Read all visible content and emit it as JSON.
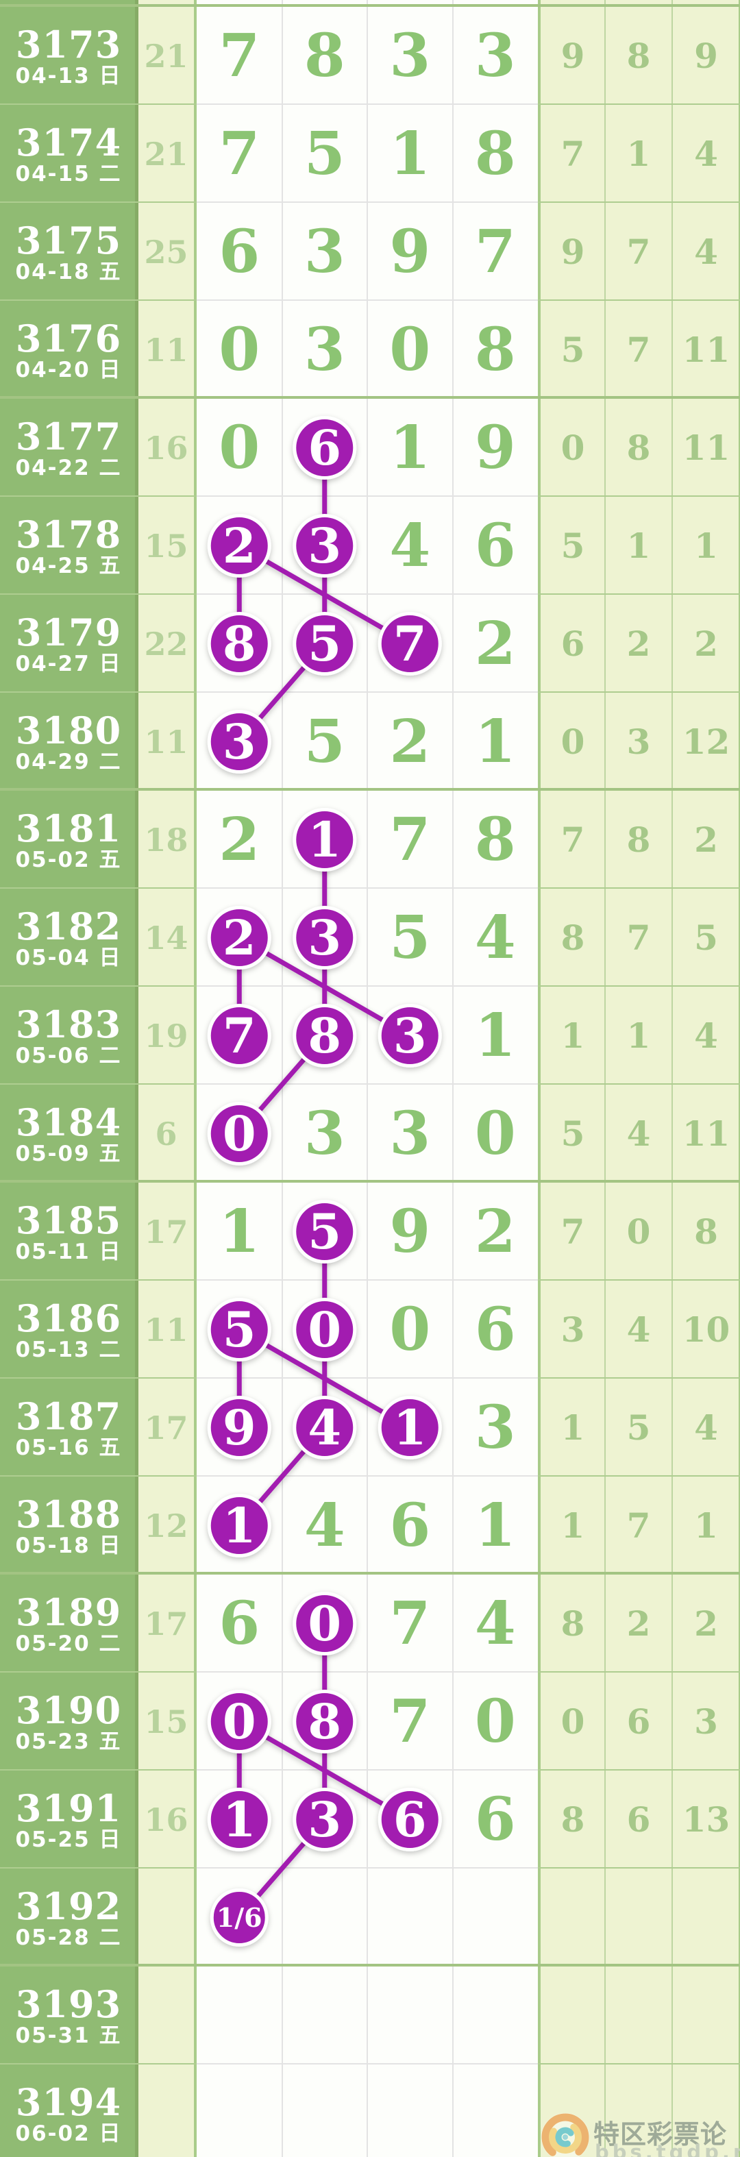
{
  "chart_data": {
    "type": "table",
    "rows": [
      {
        "period": "3173",
        "date": "04-13 日",
        "count": "21",
        "digits": [
          "7",
          "8",
          "3",
          "3"
        ],
        "circled": [],
        "extras": [
          "9",
          "8",
          "9"
        ]
      },
      {
        "period": "3174",
        "date": "04-15 二",
        "count": "21",
        "digits": [
          "7",
          "5",
          "1",
          "8"
        ],
        "circled": [],
        "extras": [
          "7",
          "1",
          "4"
        ]
      },
      {
        "period": "3175",
        "date": "04-18 五",
        "count": "25",
        "digits": [
          "6",
          "3",
          "9",
          "7"
        ],
        "circled": [],
        "extras": [
          "9",
          "7",
          "4"
        ]
      },
      {
        "period": "3176",
        "date": "04-20 日",
        "count": "11",
        "digits": [
          "0",
          "3",
          "0",
          "8"
        ],
        "circled": [],
        "extras": [
          "5",
          "7",
          "11"
        ]
      },
      {
        "period": "3177",
        "date": "04-22 二",
        "count": "16",
        "digits": [
          "0",
          "6",
          "1",
          "9"
        ],
        "circled": [
          1
        ],
        "extras": [
          "0",
          "8",
          "11"
        ]
      },
      {
        "period": "3178",
        "date": "04-25 五",
        "count": "15",
        "digits": [
          "2",
          "3",
          "4",
          "6"
        ],
        "circled": [
          0,
          1
        ],
        "extras": [
          "5",
          "1",
          "1"
        ]
      },
      {
        "period": "3179",
        "date": "04-27 日",
        "count": "22",
        "digits": [
          "8",
          "5",
          "7",
          "2"
        ],
        "circled": [
          0,
          1,
          2
        ],
        "extras": [
          "6",
          "2",
          "2"
        ]
      },
      {
        "period": "3180",
        "date": "04-29 二",
        "count": "11",
        "digits": [
          "3",
          "5",
          "2",
          "1"
        ],
        "circled": [
          0
        ],
        "extras": [
          "0",
          "3",
          "12"
        ]
      },
      {
        "period": "3181",
        "date": "05-02 五",
        "count": "18",
        "digits": [
          "2",
          "1",
          "7",
          "8"
        ],
        "circled": [
          1
        ],
        "extras": [
          "7",
          "8",
          "2"
        ]
      },
      {
        "period": "3182",
        "date": "05-04 日",
        "count": "14",
        "digits": [
          "2",
          "3",
          "5",
          "4"
        ],
        "circled": [
          0,
          1
        ],
        "extras": [
          "8",
          "7",
          "5"
        ]
      },
      {
        "period": "3183",
        "date": "05-06 二",
        "count": "19",
        "digits": [
          "7",
          "8",
          "3",
          "1"
        ],
        "circled": [
          0,
          1,
          2
        ],
        "extras": [
          "1",
          "1",
          "4"
        ]
      },
      {
        "period": "3184",
        "date": "05-09 五",
        "count": "6",
        "digits": [
          "0",
          "3",
          "3",
          "0"
        ],
        "circled": [
          0
        ],
        "extras": [
          "5",
          "4",
          "11"
        ]
      },
      {
        "period": "3185",
        "date": "05-11 日",
        "count": "17",
        "digits": [
          "1",
          "5",
          "9",
          "2"
        ],
        "circled": [
          1
        ],
        "extras": [
          "7",
          "0",
          "8"
        ]
      },
      {
        "period": "3186",
        "date": "05-13 二",
        "count": "11",
        "digits": [
          "5",
          "0",
          "0",
          "6"
        ],
        "circled": [
          0,
          1
        ],
        "extras": [
          "3",
          "4",
          "10"
        ]
      },
      {
        "period": "3187",
        "date": "05-16 五",
        "count": "17",
        "digits": [
          "9",
          "4",
          "1",
          "3"
        ],
        "circled": [
          0,
          1,
          2
        ],
        "extras": [
          "1",
          "5",
          "4"
        ]
      },
      {
        "period": "3188",
        "date": "05-18 日",
        "count": "12",
        "digits": [
          "1",
          "4",
          "6",
          "1"
        ],
        "circled": [
          0
        ],
        "extras": [
          "1",
          "7",
          "1"
        ]
      },
      {
        "period": "3189",
        "date": "05-20 二",
        "count": "17",
        "digits": [
          "6",
          "0",
          "7",
          "4"
        ],
        "circled": [
          1
        ],
        "extras": [
          "8",
          "2",
          "2"
        ]
      },
      {
        "period": "3190",
        "date": "05-23 五",
        "count": "15",
        "digits": [
          "0",
          "8",
          "7",
          "0"
        ],
        "circled": [
          0,
          1
        ],
        "extras": [
          "0",
          "6",
          "3"
        ]
      },
      {
        "period": "3191",
        "date": "05-25 日",
        "count": "16",
        "digits": [
          "1",
          "3",
          "6",
          "6"
        ],
        "circled": [
          0,
          1,
          2
        ],
        "extras": [
          "8",
          "6",
          "13"
        ]
      },
      {
        "period": "3192",
        "date": "05-28 二",
        "count": "",
        "digits": [
          "1/6",
          "",
          "",
          ""
        ],
        "circled": [
          0
        ],
        "small_circle": true,
        "extras": [
          "",
          "",
          ""
        ]
      },
      {
        "period": "3193",
        "date": "05-31 五",
        "count": "",
        "digits": [
          "",
          "",
          "",
          ""
        ],
        "circled": [],
        "extras": [
          "",
          "",
          ""
        ]
      },
      {
        "period": "3194",
        "date": "06-02 日",
        "count": "",
        "digits": [
          "",
          "",
          "",
          ""
        ],
        "circled": [],
        "extras": [
          "",
          "",
          ""
        ]
      }
    ],
    "connections": [
      {
        "from": [
          4,
          1
        ],
        "to": [
          5,
          1
        ]
      },
      {
        "from": [
          5,
          0
        ],
        "to": [
          6,
          0
        ]
      },
      {
        "from": [
          5,
          0
        ],
        "to": [
          6,
          2
        ]
      },
      {
        "from": [
          5,
          1
        ],
        "to": [
          6,
          1
        ]
      },
      {
        "from": [
          6,
          1
        ],
        "to": [
          7,
          0
        ]
      },
      {
        "from": [
          8,
          1
        ],
        "to": [
          9,
          1
        ]
      },
      {
        "from": [
          9,
          0
        ],
        "to": [
          10,
          0
        ]
      },
      {
        "from": [
          9,
          0
        ],
        "to": [
          10,
          2
        ]
      },
      {
        "from": [
          9,
          1
        ],
        "to": [
          10,
          1
        ]
      },
      {
        "from": [
          10,
          1
        ],
        "to": [
          11,
          0
        ]
      },
      {
        "from": [
          12,
          1
        ],
        "to": [
          13,
          1
        ]
      },
      {
        "from": [
          13,
          0
        ],
        "to": [
          14,
          0
        ]
      },
      {
        "from": [
          13,
          0
        ],
        "to": [
          14,
          2
        ]
      },
      {
        "from": [
          13,
          1
        ],
        "to": [
          14,
          1
        ]
      },
      {
        "from": [
          14,
          1
        ],
        "to": [
          15,
          0
        ]
      },
      {
        "from": [
          16,
          1
        ],
        "to": [
          17,
          1
        ]
      },
      {
        "from": [
          17,
          0
        ],
        "to": [
          18,
          0
        ]
      },
      {
        "from": [
          17,
          0
        ],
        "to": [
          18,
          2
        ]
      },
      {
        "from": [
          17,
          1
        ],
        "to": [
          18,
          1
        ]
      },
      {
        "from": [
          18,
          1
        ],
        "to": [
          19,
          0
        ]
      }
    ]
  },
  "logo": {
    "title": "特区彩票论坛",
    "subtitle": "bbs.tqdp.net"
  },
  "colors": {
    "green_cell": "#90bb73",
    "pale_cell": "#eef3d2",
    "white_cell": "#fdfefb",
    "digit_green": "#8cc473",
    "count_green": "#b7d29c",
    "extra_green": "#a6c889",
    "circle_purple": "#a21cb0",
    "group_border": "#a3c483",
    "row_border_gray": "#e3e3e3",
    "row_border_green": "#aecd90",
    "col_border_dark": "#86ab66",
    "col_border_mid": "#a9cc8a",
    "col_border_light": "#bed6a2"
  }
}
